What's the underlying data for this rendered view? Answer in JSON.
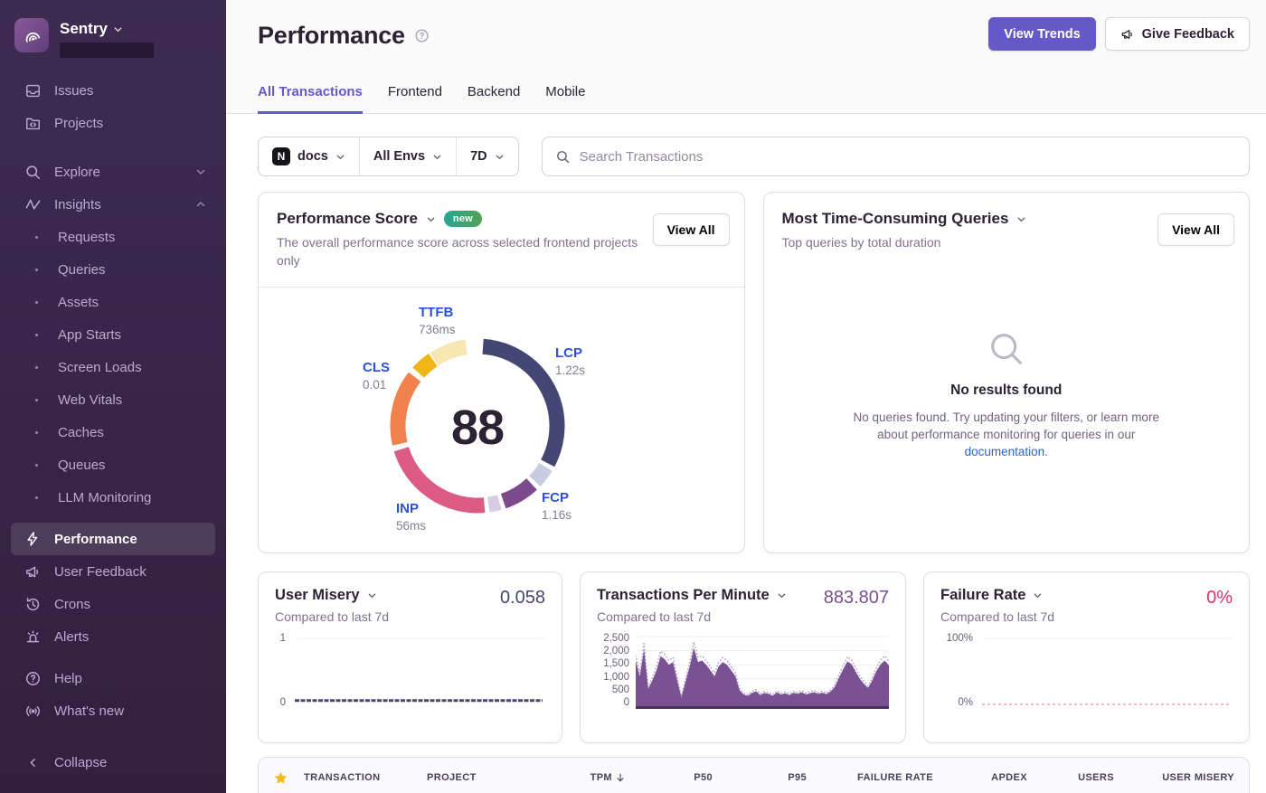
{
  "sidebar": {
    "brand": "Sentry",
    "items": {
      "issues": "Issues",
      "projects": "Projects",
      "explore": "Explore",
      "insights": "Insights",
      "insights_children": [
        "Requests",
        "Queries",
        "Assets",
        "App Starts",
        "Screen Loads",
        "Web Vitals",
        "Caches",
        "Queues",
        "LLM Monitoring"
      ],
      "performance": "Performance",
      "user_feedback": "User Feedback",
      "crons": "Crons",
      "alerts": "Alerts",
      "help": "Help",
      "whats_new": "What's new",
      "collapse": "Collapse"
    }
  },
  "header": {
    "title": "Performance",
    "view_trends": "View Trends",
    "give_feedback": "Give Feedback",
    "tabs": [
      "All Transactions",
      "Frontend",
      "Backend",
      "Mobile"
    ],
    "active_tab": "All Transactions"
  },
  "filters": {
    "project_badge_letter": "N",
    "project": "docs",
    "environment": "All Envs",
    "date_range": "7D",
    "search_placeholder": "Search Transactions"
  },
  "cards": {
    "performance_score": {
      "title": "Performance Score",
      "badge": "new",
      "view_all": "View All",
      "subtitle": "The overall performance score across selected frontend projects only"
    },
    "queries": {
      "title": "Most Time-Consuming Queries",
      "view_all": "View All",
      "subtitle": "Top queries by total duration",
      "empty_title": "No results found",
      "empty_body_1": "No queries found. Try updating your filters, or learn more about performance monitoring for queries in our ",
      "empty_link": "documentation",
      "empty_body_2": "."
    },
    "user_misery": {
      "title": "User Misery",
      "value": "0.058",
      "subtitle": "Compared to last 7d"
    },
    "tpm": {
      "title": "Transactions Per Minute",
      "value": "883.807",
      "subtitle": "Compared to last 7d"
    },
    "failure_rate": {
      "title": "Failure Rate",
      "value": "0%",
      "subtitle": "Compared to last 7d"
    }
  },
  "table": {
    "columns": [
      "TRANSACTION",
      "PROJECT",
      "TPM",
      "P50",
      "P95",
      "FAILURE RATE",
      "APDEX",
      "USERS",
      "USER MISERY"
    ],
    "sorted_by": "TPM",
    "sort_direction": "desc"
  },
  "colors": {
    "accent_purple": "#6559c8",
    "accent_blue": "#2c50d9",
    "value_navy": "#444674",
    "value_purple": "#7a4e8f",
    "value_pink": "#d6336c",
    "star_gold": "#f5b81c"
  },
  "chart_data": [
    {
      "type": "donut",
      "title": "Performance Score",
      "score": 88,
      "segments": [
        {
          "label": "LCP",
          "color": "#444674",
          "start": 4,
          "end": 118
        },
        {
          "label": "",
          "color": "#c9cbe0",
          "start": 121,
          "end": 134
        },
        {
          "label": "FCP",
          "color": "#7e4a8e",
          "start": 137,
          "end": 161
        },
        {
          "label": "",
          "color": "#d8cce4",
          "start": 164,
          "end": 172
        },
        {
          "label": "INP",
          "color": "#dc5b85",
          "start": 175,
          "end": 253
        },
        {
          "label": "CLS",
          "color": "#f1814d",
          "start": 257,
          "end": 308
        },
        {
          "label": "TTFB",
          "color": "#efb616",
          "start": 312,
          "end": 326
        },
        {
          "label": "TTFB",
          "color": "#f9e7b3",
          "start": 327,
          "end": 352
        }
      ],
      "vitals": [
        {
          "name": "TTFB",
          "value": "736ms"
        },
        {
          "name": "LCP",
          "value": "1.22s"
        },
        {
          "name": "CLS",
          "value": "0.01"
        },
        {
          "name": "INP",
          "value": "56ms"
        },
        {
          "name": "FCP",
          "value": "1.16s"
        }
      ]
    },
    {
      "type": "line",
      "title": "User Misery",
      "value": 0.058,
      "ylim": [
        0,
        1
      ],
      "yticks": [
        "1",
        "0"
      ],
      "series_color": "#444674"
    },
    {
      "type": "area",
      "title": "Transactions Per Minute",
      "value": 883.807,
      "ylim": [
        0,
        2500
      ],
      "yticks": [
        "2,500",
        "2,000",
        "1,500",
        "1,000",
        "500",
        "0"
      ],
      "color": "#7a5294",
      "previous_color": "#b9a0ca",
      "values": [
        1650,
        1100,
        2050,
        650,
        950,
        1300,
        1800,
        1700,
        1500,
        1600,
        950,
        350,
        900,
        1450,
        2100,
        1600,
        1650,
        1500,
        1300,
        1100,
        1450,
        1600,
        1500,
        1300,
        1100,
        600,
        450,
        400,
        500,
        560,
        430,
        500,
        470,
        400,
        520,
        450,
        490,
        430,
        510,
        470,
        530,
        450,
        490,
        530,
        470,
        510,
        460,
        560,
        720,
        1050,
        1350,
        1620,
        1520,
        1260,
        1000,
        820,
        680,
        950,
        1280,
        1520,
        1650,
        1480
      ],
      "previous": [
        1815,
        1210,
        2255,
        715,
        1045,
        1430,
        1980,
        1870,
        1650,
        1760,
        1045,
        385,
        990,
        1595,
        2310,
        1760,
        1815,
        1650,
        1430,
        1210,
        1595,
        1760,
        1650,
        1430,
        1210,
        660,
        495,
        440,
        550,
        616,
        473,
        550,
        517,
        440,
        572,
        495,
        539,
        473,
        561,
        517,
        583,
        495,
        539,
        583,
        517,
        561,
        506,
        616,
        792,
        1155,
        1485,
        1782,
        1672,
        1386,
        1100,
        902,
        748,
        1045,
        1408,
        1672,
        1815,
        1628
      ]
    },
    {
      "type": "line",
      "title": "Failure Rate",
      "value": 0,
      "ylim": [
        0,
        100
      ],
      "yticks": [
        "100%",
        "0%"
      ],
      "series_color": "#e7a5ba"
    }
  ]
}
